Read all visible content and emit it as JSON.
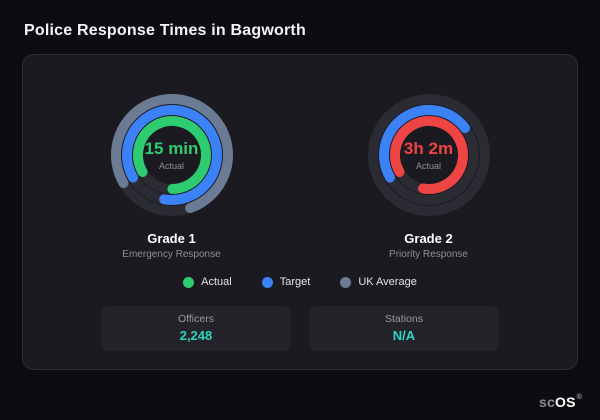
{
  "title": "Police Response Times in Bagworth",
  "colors": {
    "stat_value": "#2dd4bf",
    "card_background": "#1a1a20",
    "page_background": "#0d0d11"
  },
  "chart_data": {
    "type": "gauge",
    "title": "Police Response Times in Bagworth",
    "start_angle_deg": 240,
    "track_color": "#2b2b33",
    "legend_position": "bottom-center",
    "gauges": [
      {
        "title": "Grade 1",
        "subtitle": "Emergency Response",
        "value_label": "15 min",
        "value_color": "#2ecc71",
        "sub_label": "Actual",
        "rings": [
          {
            "name": "UK Average",
            "color": "#6b7b93",
            "fraction": 0.78
          },
          {
            "name": "Target",
            "color": "#3b82f6",
            "fraction": 0.86
          },
          {
            "name": "Actual",
            "color": "#2ecc71",
            "fraction": 0.83
          }
        ]
      },
      {
        "title": "Grade 2",
        "subtitle": "Priority Response",
        "value_label": "3h 2m",
        "value_color": "#ef4444",
        "sub_label": "Actual",
        "rings": [
          {
            "name": "UK Average",
            "color": "#6b7b93",
            "fraction": 0.0
          },
          {
            "name": "Target",
            "color": "#3b82f6",
            "fraction": 0.48
          },
          {
            "name": "Actual",
            "color": "#ef4444",
            "fraction": 0.86
          }
        ]
      }
    ],
    "legend": [
      {
        "label": "Actual",
        "color": "#2ecc71"
      },
      {
        "label": "Target",
        "color": "#3b82f6"
      },
      {
        "label": "UK Average",
        "color": "#6b7b93"
      }
    ]
  },
  "stats": [
    {
      "label": "Officers",
      "value": "2,248"
    },
    {
      "label": "Stations",
      "value": "N/A"
    }
  ],
  "logo": {
    "prefix": "sc",
    "suffix": "OS",
    "reg": "®"
  }
}
